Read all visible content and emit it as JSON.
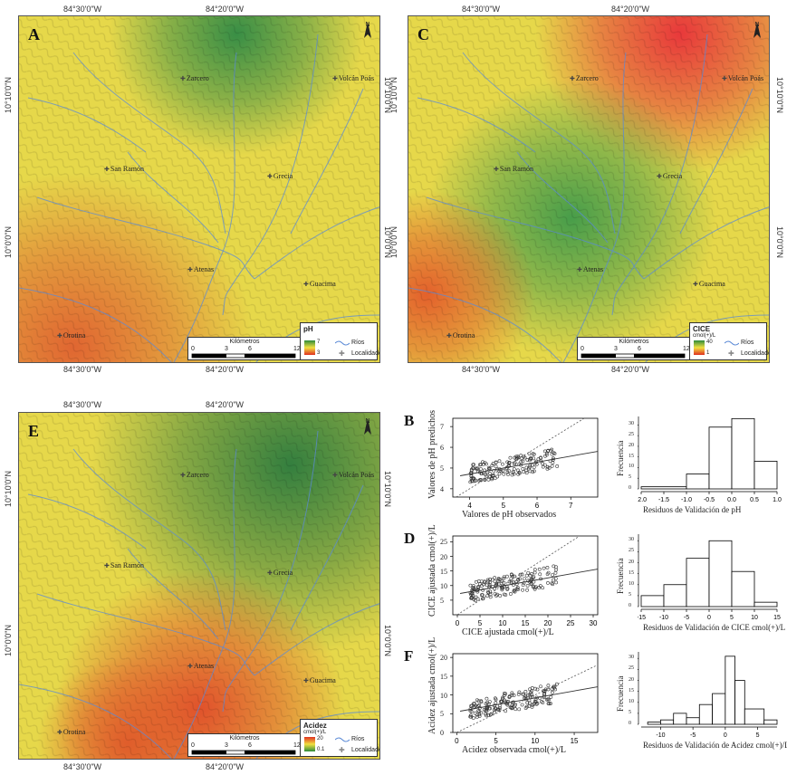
{
  "maps": [
    {
      "id": "A",
      "label": "A",
      "lon_top": [
        "84°30'0\"W",
        "84°20'0\"W"
      ],
      "lon_bottom": [
        "84°30'0\"W",
        "84°20'0\"W"
      ],
      "lat_left": [
        "10°10'0\"N",
        "10°0'0\"N"
      ],
      "lat_right": [
        "10°10'0\"N",
        "10°0'0\"N"
      ],
      "legend": {
        "title": "pH",
        "unit": "",
        "max": "7",
        "min": "3",
        "colors": [
          "#2e8b3a",
          "#f0e040",
          "#e03020"
        ]
      },
      "palette": "ph"
    },
    {
      "id": "C",
      "label": "C",
      "lon_top": [
        "84°30'0\"W",
        "84°20'0\"W"
      ],
      "lon_bottom": [
        "84°30'0\"W",
        "84°20'0\"W"
      ],
      "lat_left": [
        "10°10'0\"N",
        "10°0'0\"N"
      ],
      "lat_right": [
        "10°10'0\"N",
        "10°0'0\"N"
      ],
      "legend": {
        "title": "CICE",
        "unit": "cmol(+)/L",
        "max": "40",
        "min": "1",
        "colors": [
          "#2e8b3a",
          "#f0e040",
          "#e03020"
        ]
      },
      "palette": "cice"
    },
    {
      "id": "E",
      "label": "E",
      "lon_top": [
        "84°30'0\"W",
        "84°20'0\"W"
      ],
      "lon_bottom": [
        "84°30'0\"W",
        "84°20'0\"W"
      ],
      "lat_left": [
        "10°10'0\"N",
        "10°0'0\"N"
      ],
      "lat_right": [
        "10°10'0\"N",
        "10°0'0\"N"
      ],
      "legend": {
        "title": "Acidez",
        "unit": "cmol(+)/L",
        "max": "20",
        "min": "0.1",
        "colors": [
          "#e03020",
          "#f0e040",
          "#2e8b3a"
        ]
      },
      "palette": "acid"
    }
  ],
  "towns": [
    "Zarcero",
    "Volcán Poás",
    "San Ramón",
    "Grecia",
    "Atenas",
    "Guacima",
    "Orotina"
  ],
  "scale": {
    "title": "Kilómetros",
    "ticks": [
      "0",
      "3",
      "6",
      "12"
    ]
  },
  "legend_items": {
    "rivers": "Ríos",
    "towns": "Localidades"
  },
  "north": {
    "n": "N"
  },
  "panels": [
    {
      "id": "B",
      "label": "B",
      "scatter": {
        "xlabel": "Valores de pH observados",
        "ylabel": "Valores de pH predichos",
        "xticks": [
          "4",
          "5",
          "6",
          "7"
        ],
        "yticks": [
          "4",
          "5",
          "6",
          "7"
        ],
        "xlim": [
          3.5,
          7.8
        ],
        "ylim": [
          3.6,
          7.4
        ]
      },
      "hist": {
        "xlabel": "Residuos de Validación de pH",
        "ylabel": "Frecuencia",
        "xticks": [
          "-2.0",
          "-1.5",
          "-1.0",
          "-0.5",
          "0.0",
          "0.5",
          "1.0"
        ],
        "yticks": [
          "0",
          "5",
          "10",
          "15",
          "20",
          "25",
          "30"
        ],
        "xlim": [
          -2.0,
          1.0
        ],
        "ylim": [
          0,
          34
        ]
      }
    },
    {
      "id": "D",
      "label": "D",
      "scatter": {
        "xlabel": "CICE ajustada cmol(+)/L",
        "ylabel": "CICE ajustada cmol(+)/L",
        "xticks": [
          "0",
          "5",
          "10",
          "15",
          "20",
          "25",
          "30"
        ],
        "yticks": [
          "5",
          "10",
          "15",
          "20",
          "25"
        ],
        "xlim": [
          -1,
          31
        ],
        "ylim": [
          0,
          27
        ]
      },
      "hist": {
        "xlabel": "Residuos de Validación de CICE cmol(+)/L",
        "ylabel": "Frecuencia",
        "xticks": [
          "-15",
          "-10",
          "-5",
          "0",
          "5",
          "10",
          "15"
        ],
        "yticks": [
          "0",
          "5",
          "10",
          "15",
          "20",
          "25",
          "30"
        ],
        "xlim": [
          -15,
          15
        ],
        "ylim": [
          0,
          33
        ]
      }
    },
    {
      "id": "F",
      "label": "F",
      "scatter": {
        "xlabel": "Acidez observada cmol(+)/L",
        "ylabel": "Acidez ajustada cmol(+)/L",
        "xticks": [
          "0",
          "5",
          "10",
          "15"
        ],
        "yticks": [
          "0",
          "5",
          "10",
          "15",
          "20"
        ],
        "xlim": [
          -0.5,
          18
        ],
        "ylim": [
          0,
          21
        ]
      },
      "hist": {
        "xlabel": "Residuos de Validación de Acidez cmol(+)/L",
        "ylabel": "Frecuencia",
        "xticks": [
          "-10",
          "-5",
          "0",
          "5"
        ],
        "yticks": [
          "0",
          "5",
          "10",
          "15",
          "20",
          "25",
          "30"
        ],
        "xlim": [
          -13,
          8
        ],
        "ylim": [
          0,
          33
        ]
      }
    }
  ],
  "chart_data": [
    {
      "type": "histogram",
      "panel": "B",
      "bins": [
        [
          -2.0,
          -1.0,
          1
        ],
        [
          -1.0,
          -0.5,
          7
        ],
        [
          -0.5,
          0.0,
          29
        ],
        [
          0.0,
          0.5,
          33
        ],
        [
          0.5,
          1.0,
          13
        ]
      ]
    },
    {
      "type": "histogram",
      "panel": "D",
      "bins": [
        [
          -15,
          -10,
          5
        ],
        [
          -10,
          -5,
          10
        ],
        [
          -5,
          0,
          22
        ],
        [
          0,
          5,
          30
        ],
        [
          5,
          10,
          16
        ],
        [
          10,
          15,
          2
        ]
      ]
    },
    {
      "type": "histogram",
      "panel": "F",
      "bins": [
        [
          -12,
          -10,
          1
        ],
        [
          -10,
          -8,
          2
        ],
        [
          -8,
          -6,
          5
        ],
        [
          -6,
          -4,
          3
        ],
        [
          -4,
          -2,
          9
        ],
        [
          -2,
          0,
          14
        ],
        [
          0,
          1.5,
          31
        ],
        [
          1.5,
          3,
          20
        ],
        [
          3,
          6,
          7
        ],
        [
          6,
          8,
          2
        ]
      ]
    }
  ]
}
